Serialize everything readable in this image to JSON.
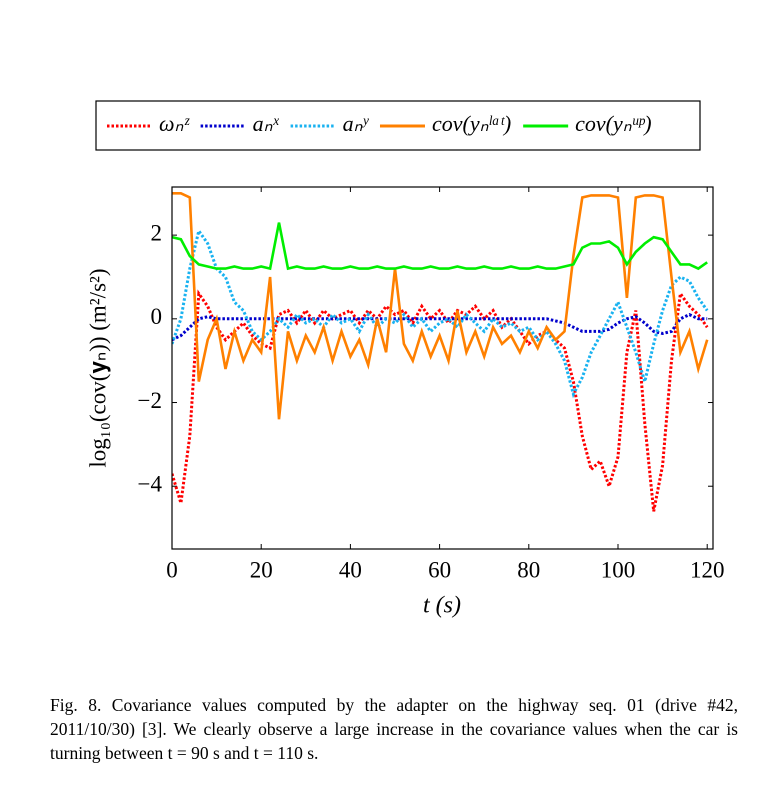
{
  "chart_data": {
    "type": "line",
    "xlabel": "t (s)",
    "ylabel": "log₁₀(cov(𝐲ₙ)) (m²/s²)",
    "xlim": [
      0,
      121.3
    ],
    "ylim": [
      -5.5,
      3.15
    ],
    "xticks": [
      0,
      20,
      40,
      60,
      80,
      100,
      120
    ],
    "yticks": [
      {
        "value": -4,
        "label": "−4"
      },
      {
        "value": -2,
        "label": "−2"
      },
      0,
      2
    ],
    "x": [
      0,
      2,
      4,
      6,
      8,
      10,
      12,
      14,
      16,
      18,
      20,
      22,
      24,
      26,
      28,
      30,
      32,
      34,
      36,
      38,
      40,
      42,
      44,
      46,
      48,
      50,
      52,
      54,
      56,
      58,
      60,
      62,
      64,
      66,
      68,
      70,
      72,
      74,
      76,
      78,
      80,
      82,
      84,
      86,
      88,
      90,
      92,
      94,
      96,
      98,
      100,
      102,
      104,
      106,
      108,
      110,
      112,
      114,
      116,
      118,
      120
    ],
    "series": [
      {
        "name": "ωₙᶻ",
        "color": "#ff0000",
        "style": "dotted",
        "values": [
          -3.7,
          -4.4,
          -2.8,
          0.6,
          0.3,
          -0.2,
          -0.5,
          -0.3,
          -0.1,
          -0.4,
          -0.6,
          -0.7,
          0.1,
          0.2,
          -0.1,
          0.2,
          -0.1,
          0.2,
          0,
          0.1,
          0.2,
          -0.1,
          0.2,
          0,
          0.3,
          0.1,
          0.2,
          -0.1,
          0.3,
          0,
          0.2,
          -0.1,
          0.2,
          0.1,
          0.3,
          0,
          0.2,
          -0.2,
          0,
          -0.3,
          -0.6,
          -0.4,
          -0.3,
          -0.5,
          -0.7,
          -1.5,
          -2.8,
          -3.6,
          -3.4,
          -4.0,
          -3.3,
          -0.8,
          0.2,
          -2.5,
          -4.6,
          -3.5,
          -1.0,
          0.6,
          0.3,
          0.1,
          -0.2
        ]
      },
      {
        "name": "aₙˣ",
        "color": "#0000cc",
        "style": "dotted",
        "values": [
          -0.5,
          -0.4,
          -0.2,
          0,
          0.05,
          0,
          0,
          0,
          0,
          0,
          0,
          0,
          0,
          0,
          0,
          0,
          0,
          0,
          0,
          0,
          0,
          0,
          0,
          0,
          0,
          0,
          0,
          0,
          0,
          0,
          0,
          0,
          0,
          0,
          0,
          0,
          0,
          0,
          0,
          0,
          0,
          0,
          0,
          -0.05,
          -0.1,
          -0.2,
          -0.3,
          -0.3,
          -0.3,
          -0.25,
          -0.1,
          0,
          0.05,
          -0.1,
          -0.3,
          -0.35,
          -0.3,
          0,
          0.1,
          0,
          0
        ]
      },
      {
        "name": "aₙʸ",
        "color": "#19b2f0",
        "style": "dotted",
        "values": [
          -0.6,
          0,
          1.2,
          2.1,
          1.8,
          1.2,
          1.0,
          0.4,
          0.2,
          -0.3,
          -0.5,
          -0.3,
          0,
          -0.2,
          0.1,
          -0.1,
          0,
          -0.2,
          0.1,
          -0.1,
          0,
          -0.3,
          0.1,
          -0.2,
          0,
          -0.1,
          0.1,
          -0.2,
          0,
          -0.3,
          -0.1,
          0,
          -0.2,
          0.1,
          -0.1,
          -0.3,
          0,
          -0.2,
          -0.1,
          -0.3,
          -0.2,
          -0.5,
          -0.3,
          -0.6,
          -1.0,
          -1.8,
          -1.4,
          -0.8,
          -0.4,
          0,
          0.4,
          -0.2,
          -0.8,
          -1.5,
          -0.6,
          0.2,
          0.8,
          1.0,
          0.9,
          0.5,
          0.2
        ]
      },
      {
        "name": "cov(yₙˡᵃᵗ)",
        "color": "#ff8000",
        "style": "solid",
        "values": [
          3,
          3,
          2.9,
          -1.5,
          -0.5,
          0,
          -1.2,
          -0.3,
          -1.0,
          -0.5,
          -0.8,
          1.0,
          -2.4,
          -0.3,
          -1.0,
          -0.4,
          -0.8,
          -0.2,
          -1.0,
          -0.3,
          -0.9,
          -0.5,
          -1.1,
          0,
          -0.8,
          1.2,
          -0.6,
          -1.0,
          -0.3,
          -0.9,
          -0.4,
          -1.0,
          0.2,
          -0.8,
          -0.3,
          -0.9,
          -0.2,
          -0.6,
          -0.4,
          -0.8,
          -0.3,
          -0.7,
          -0.2,
          -0.5,
          -0.3,
          1.5,
          2.9,
          2.95,
          2.95,
          2.95,
          2.9,
          0.5,
          2.9,
          2.95,
          2.95,
          2.9,
          1.0,
          -0.8,
          -0.3,
          -1.2,
          -0.5
        ]
      },
      {
        "name": "cov(yₙᵘᵖ)",
        "color": "#00ee00",
        "style": "solid",
        "values": [
          1.95,
          1.9,
          1.5,
          1.3,
          1.25,
          1.2,
          1.2,
          1.25,
          1.2,
          1.2,
          1.25,
          1.2,
          2.3,
          1.2,
          1.25,
          1.2,
          1.2,
          1.25,
          1.2,
          1.2,
          1.25,
          1.2,
          1.2,
          1.25,
          1.2,
          1.2,
          1.25,
          1.2,
          1.2,
          1.25,
          1.2,
          1.2,
          1.25,
          1.2,
          1.2,
          1.25,
          1.2,
          1.2,
          1.25,
          1.2,
          1.2,
          1.25,
          1.2,
          1.2,
          1.25,
          1.3,
          1.7,
          1.8,
          1.8,
          1.85,
          1.7,
          1.3,
          1.6,
          1.8,
          1.95,
          1.9,
          1.6,
          1.3,
          1.3,
          1.2,
          1.35
        ]
      }
    ],
    "legend": "top",
    "caption": "Fig. 8.  Covariance values computed by the adapter on the highway seq. 01 (drive #42, 2011/10/30) [3]. We clearly observe a large increase in the covariance values when the car is turning between t = 90 s and t = 110 s."
  }
}
